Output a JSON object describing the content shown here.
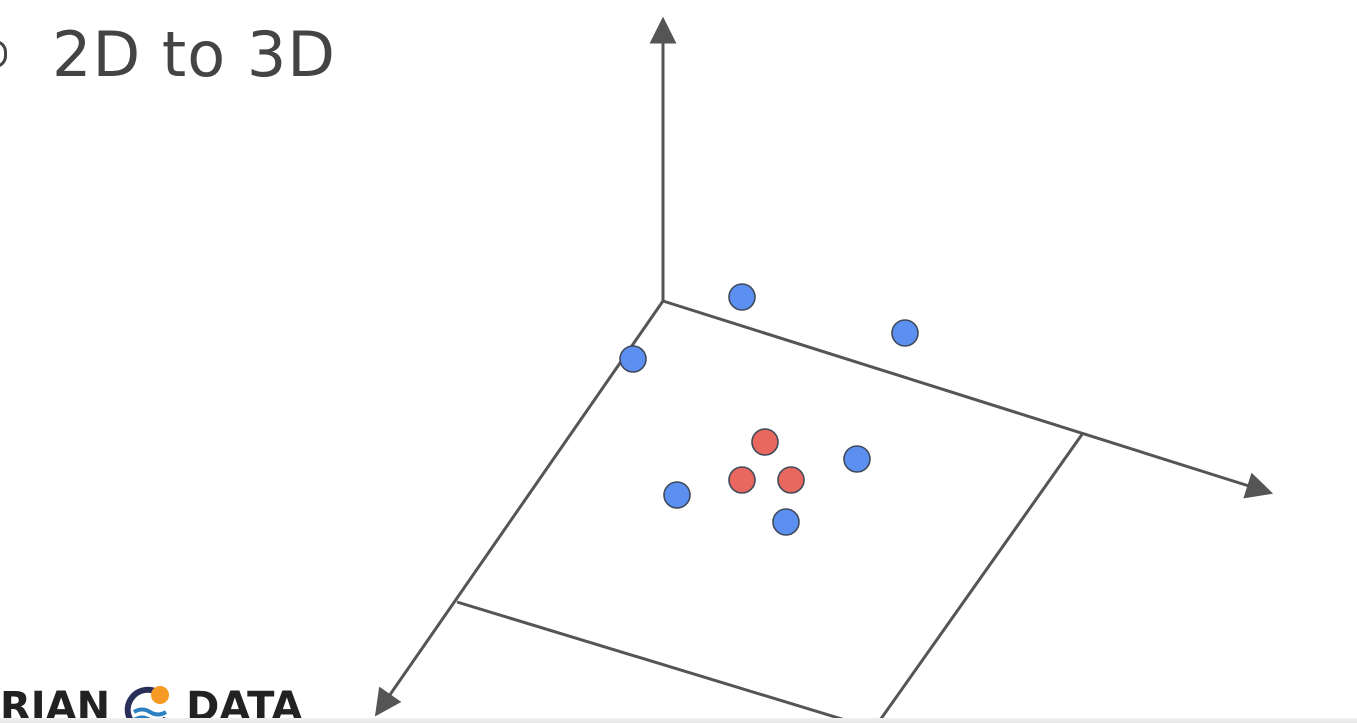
{
  "slide": {
    "title": "2D to 3D"
  },
  "logo": {
    "left_text": "RIAN",
    "right_text": "DATA",
    "icon": "sun-over-waves-icon"
  },
  "diagram": {
    "axis_color": "#555555",
    "point_stroke": "#404a5a",
    "class_colors": {
      "blue": "#5b8ff0",
      "red": "#e8675f"
    },
    "axes": [
      "vertical-axis",
      "right-axis",
      "left-axis"
    ],
    "points": [
      {
        "class": "blue"
      },
      {
        "class": "blue"
      },
      {
        "class": "blue"
      },
      {
        "class": "blue"
      },
      {
        "class": "blue"
      },
      {
        "class": "blue"
      },
      {
        "class": "red"
      },
      {
        "class": "red"
      },
      {
        "class": "red"
      }
    ]
  }
}
